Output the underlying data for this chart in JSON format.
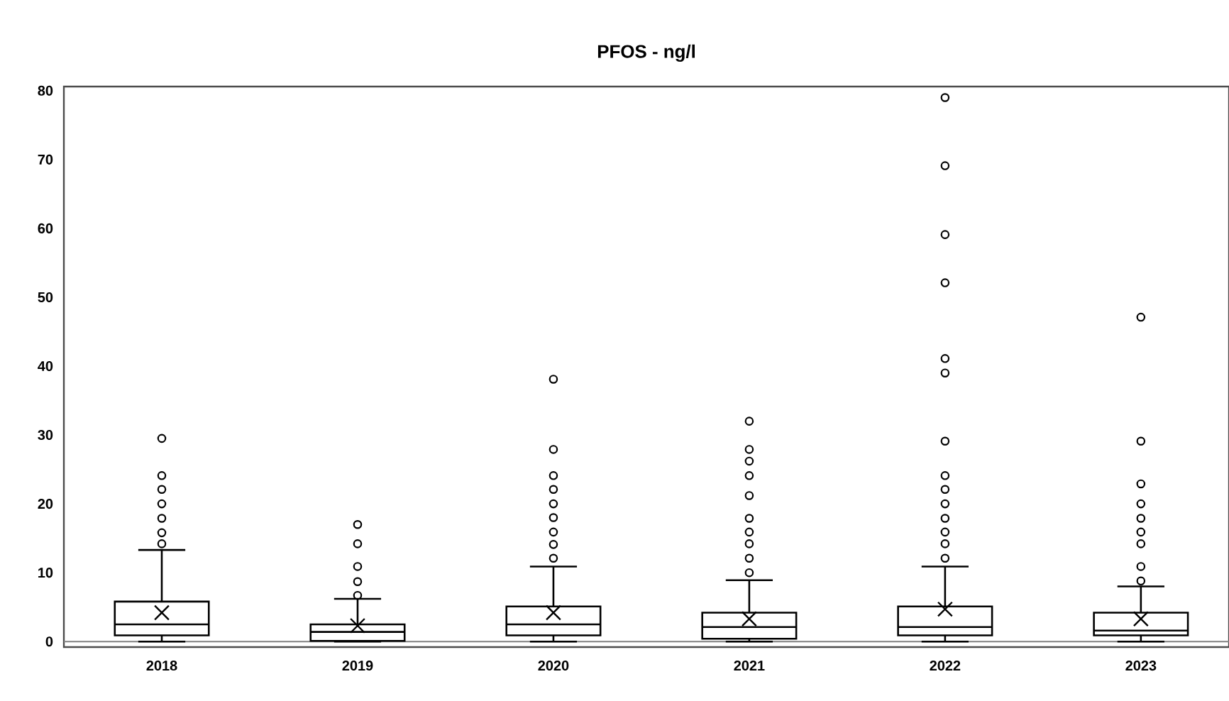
{
  "chart_data": {
    "type": "box",
    "title": "PFOS - ng/l",
    "categories": [
      "2018",
      "2019",
      "2020",
      "2021",
      "2022",
      "2023"
    ],
    "ylim": [
      -0.8,
      80.6
    ],
    "yticks": [
      0,
      10,
      20,
      30,
      40,
      50,
      60,
      70,
      80
    ],
    "grid": false,
    "marker": "circle",
    "ref_lines": [
      {
        "axis": "y",
        "value": 0,
        "color": "#808080"
      }
    ],
    "series": [
      {
        "color": "#000000",
        "boxes": [
          {
            "low": 0,
            "q1": 0.9,
            "median": 2.5,
            "q3": 5.8,
            "high": 13.3,
            "mean": 4.2,
            "outliers": [
              14.2,
              15.8,
              17.9,
              20.0,
              22.1,
              24.1,
              29.5
            ]
          },
          {
            "low": 0,
            "q1": 0.1,
            "median": 1.4,
            "q3": 2.5,
            "high": 6.2,
            "mean": 2.3,
            "outliers": [
              6.7,
              8.7,
              10.9,
              14.2,
              17.0
            ]
          },
          {
            "low": 0,
            "q1": 0.9,
            "median": 2.5,
            "q3": 5.1,
            "high": 10.9,
            "mean": 4.2,
            "outliers": [
              12.1,
              14.1,
              15.9,
              18.0,
              20.0,
              22.1,
              24.1,
              27.9,
              38.1
            ]
          },
          {
            "low": 0,
            "q1": 0.4,
            "median": 2.1,
            "q3": 4.2,
            "high": 8.9,
            "mean": 3.3,
            "outliers": [
              10.0,
              12.1,
              14.2,
              15.9,
              17.9,
              21.2,
              24.1,
              26.2,
              27.9,
              32.0
            ]
          },
          {
            "low": 0,
            "q1": 0.9,
            "median": 2.1,
            "q3": 5.1,
            "high": 10.9,
            "mean": 4.7,
            "outliers": [
              12.1,
              14.2,
              15.9,
              17.9,
              20.0,
              22.1,
              24.1,
              29.1,
              39.0,
              41.1,
              52.1,
              59.1,
              69.1,
              79.0
            ]
          },
          {
            "low": 0,
            "q1": 0.9,
            "median": 1.6,
            "q3": 4.2,
            "high": 8.0,
            "mean": 3.3,
            "outliers": [
              8.8,
              10.9,
              14.2,
              15.9,
              17.9,
              20.0,
              22.9,
              29.1,
              47.1
            ]
          }
        ]
      }
    ]
  }
}
